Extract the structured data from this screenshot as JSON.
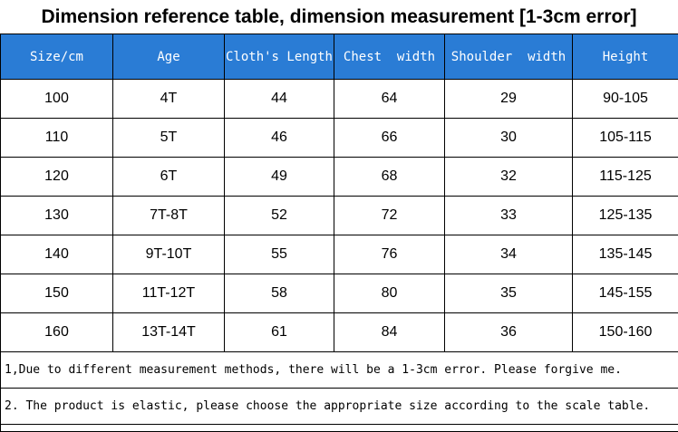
{
  "title": "Dimension reference table, dimension measurement [1-3cm error]",
  "table": {
    "columns": [
      "Size/cm",
      "Age",
      "Cloth's Length",
      "Chest  width",
      "Shoulder  width",
      "Height"
    ],
    "rows": [
      [
        "100",
        "4T",
        "44",
        "64",
        "29",
        "90-105"
      ],
      [
        "110",
        "5T",
        "46",
        "66",
        "30",
        "105-115"
      ],
      [
        "120",
        "6T",
        "49",
        "68",
        "32",
        "115-125"
      ],
      [
        "130",
        "7T-8T",
        "52",
        "72",
        "33",
        "125-135"
      ],
      [
        "140",
        "9T-10T",
        "55",
        "76",
        "34",
        "135-145"
      ],
      [
        "150",
        "11T-12T",
        "58",
        "80",
        "35",
        "145-155"
      ],
      [
        "160",
        "13T-14T",
        "61",
        "84",
        "36",
        "150-160"
      ]
    ]
  },
  "notes": [
    "1,Due to different measurement methods, there will be a 1-3cm error. Please forgive me.",
    "2. The product is elastic, please choose the appropriate size according to the scale table."
  ],
  "colors": {
    "header_bg": "#2a7cd5",
    "header_text": "#ffffff",
    "border": "#000000"
  },
  "chart_data": {
    "type": "table",
    "title": "Dimension reference table, dimension measurement [1-3cm error]",
    "columns": [
      "Size/cm",
      "Age",
      "Cloth's Length",
      "Chest width",
      "Shoulder width",
      "Height"
    ],
    "rows": [
      [
        "100",
        "4T",
        "44",
        "64",
        "29",
        "90-105"
      ],
      [
        "110",
        "5T",
        "46",
        "66",
        "30",
        "105-115"
      ],
      [
        "120",
        "6T",
        "49",
        "68",
        "32",
        "115-125"
      ],
      [
        "130",
        "7T-8T",
        "52",
        "72",
        "33",
        "125-135"
      ],
      [
        "140",
        "9T-10T",
        "55",
        "76",
        "34",
        "135-145"
      ],
      [
        "150",
        "11T-12T",
        "58",
        "80",
        "35",
        "145-155"
      ],
      [
        "160",
        "13T-14T",
        "61",
        "84",
        "36",
        "150-160"
      ]
    ],
    "notes": [
      "1,Due to different measurement methods, there will be a 1-3cm error. Please forgive me.",
      "2. The product is elastic, please choose the appropriate size according to the scale table."
    ],
    "layout": {
      "header_background": "#2a7cd5",
      "header_text_color": "#ffffff",
      "grid": "on"
    }
  }
}
